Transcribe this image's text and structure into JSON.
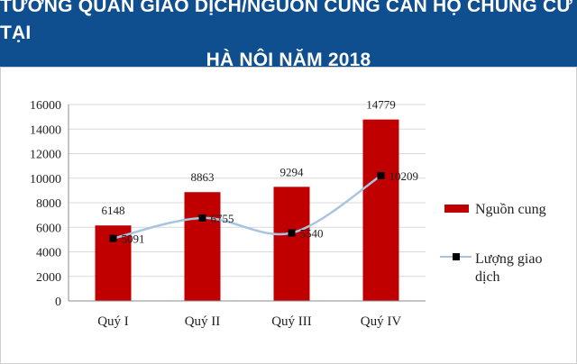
{
  "header": {
    "title_line1": "TƯƠNG QUAN GIAO DỊCH/NGUỒN CUNG CĂN HỘ CHUNG CƯ TẠI",
    "title_line2": "HÀ NỘI NĂM 2018",
    "bg_color": "#0f4f8f"
  },
  "chart_data": {
    "type": "bar",
    "categories": [
      "Quý I",
      "Quý II",
      "Quý III",
      "Quý IV"
    ],
    "series": [
      {
        "name": "Nguồn cung",
        "kind": "bar",
        "color": "#c00000",
        "values": [
          6148,
          8863,
          9294,
          14779
        ]
      },
      {
        "name": "Lượng giao dịch",
        "kind": "line",
        "color": "#a9c4e0",
        "marker": "square",
        "values": [
          5091,
          6755,
          5540,
          10209
        ]
      }
    ],
    "ylim": [
      0,
      16000
    ],
    "yticks": [
      0,
      2000,
      4000,
      6000,
      8000,
      10000,
      12000,
      14000,
      16000
    ],
    "grid": true,
    "legend_position": "right",
    "legend": [
      {
        "label": "Nguồn cung",
        "kind": "bar"
      },
      {
        "label_line1": "Lượng giao",
        "label_line2": "dịch",
        "kind": "line"
      }
    ]
  }
}
